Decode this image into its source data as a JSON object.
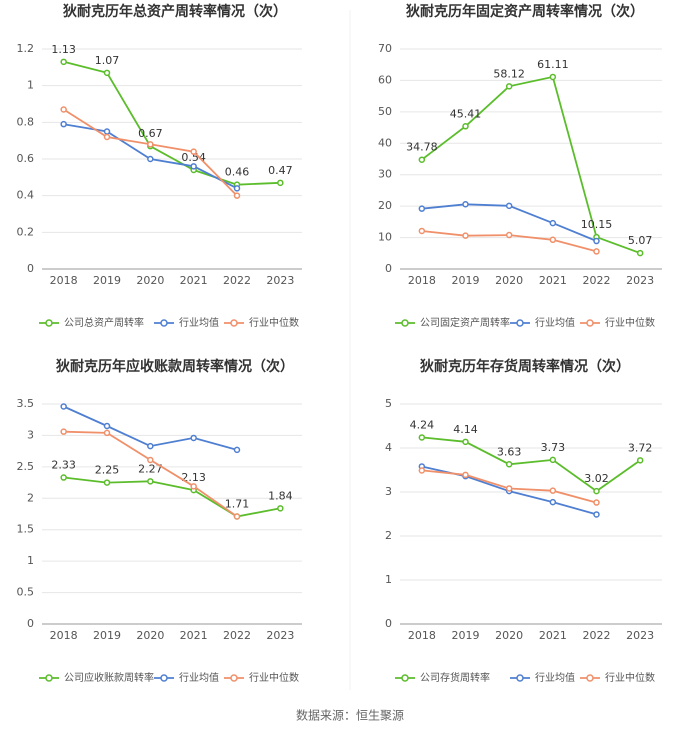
{
  "chart_data": [
    {
      "type": "line",
      "title": "狄耐克历年总资产周转率情况（次）",
      "categories": [
        "2018",
        "2019",
        "2020",
        "2021",
        "2022",
        "2023"
      ],
      "ylim": [
        0,
        1.2
      ],
      "yticks": [
        0,
        0.2,
        0.4,
        0.6,
        0.8,
        1,
        1.2
      ],
      "grid": true,
      "series": [
        {
          "name": "公司总资产周转率",
          "color": "#5bbd2b",
          "values": [
            1.13,
            1.07,
            0.67,
            0.54,
            0.46,
            0.47
          ]
        },
        {
          "name": "行业均值",
          "color": "#4f7fd1",
          "values": [
            0.79,
            0.75,
            0.6,
            0.56,
            0.44,
            null
          ]
        },
        {
          "name": "行业中位数",
          "color": "#f0906a",
          "values": [
            0.87,
            0.72,
            0.68,
            0.64,
            0.4,
            null
          ]
        }
      ]
    },
    {
      "type": "line",
      "title": "狄耐克历年固定资产周转率情况（次）",
      "categories": [
        "2018",
        "2019",
        "2020",
        "2021",
        "2022",
        "2023"
      ],
      "ylim": [
        0,
        70
      ],
      "yticks": [
        0,
        10,
        20,
        30,
        40,
        50,
        60,
        70
      ],
      "grid": true,
      "series": [
        {
          "name": "公司固定资产周转率",
          "color": "#5bbd2b",
          "values": [
            34.78,
            45.41,
            58.12,
            61.11,
            10.15,
            5.07
          ]
        },
        {
          "name": "行业均值",
          "color": "#4f7fd1",
          "values": [
            19.2,
            20.6,
            20.1,
            14.6,
            8.9,
            null
          ]
        },
        {
          "name": "行业中位数",
          "color": "#f0906a",
          "values": [
            12.1,
            10.6,
            10.8,
            9.3,
            5.6,
            null
          ]
        }
      ]
    },
    {
      "type": "line",
      "title": "狄耐克历年应收账款周转率情况（次）",
      "categories": [
        "2018",
        "2019",
        "2020",
        "2021",
        "2022",
        "2023"
      ],
      "ylim": [
        0,
        3.5
      ],
      "yticks": [
        0,
        0.5,
        1,
        1.5,
        2,
        2.5,
        3,
        3.5
      ],
      "grid": true,
      "series": [
        {
          "name": "公司应收账款周转率",
          "color": "#5bbd2b",
          "values": [
            2.33,
            2.25,
            2.27,
            2.13,
            1.71,
            1.84
          ]
        },
        {
          "name": "行业均值",
          "color": "#4f7fd1",
          "values": [
            3.46,
            3.15,
            2.83,
            2.96,
            2.77,
            null
          ]
        },
        {
          "name": "行业中位数",
          "color": "#f0906a",
          "values": [
            3.06,
            3.04,
            2.61,
            2.19,
            1.71,
            null
          ]
        }
      ]
    },
    {
      "type": "line",
      "title": "狄耐克历年存货周转率情况（次）",
      "categories": [
        "2018",
        "2019",
        "2020",
        "2021",
        "2022",
        "2023"
      ],
      "ylim": [
        0,
        5
      ],
      "yticks": [
        0,
        1,
        2,
        3,
        4,
        5
      ],
      "grid": true,
      "series": [
        {
          "name": "公司存货周转率",
          "color": "#5bbd2b",
          "values": [
            4.24,
            4.14,
            3.63,
            3.73,
            3.02,
            3.72
          ]
        },
        {
          "name": "行业均值",
          "color": "#4f7fd1",
          "values": [
            3.58,
            3.36,
            3.02,
            2.77,
            2.49,
            null
          ]
        },
        {
          "name": "行业中位数",
          "color": "#f0906a",
          "values": [
            3.49,
            3.39,
            3.08,
            3.03,
            2.76,
            null
          ]
        }
      ]
    }
  ],
  "source": "数据来源：恒生聚源"
}
